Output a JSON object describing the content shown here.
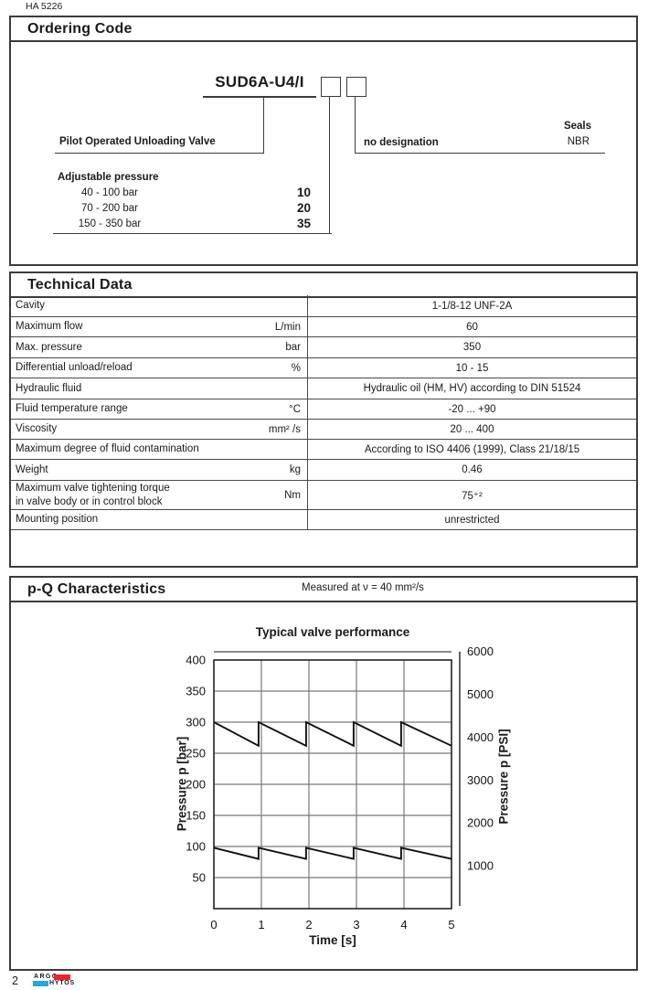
{
  "page": {
    "doc_number": "HA 5226",
    "page_number": "2",
    "brand_top": "ARGO",
    "brand_bottom": "HYTOS",
    "brand_red": "#e8262b",
    "brand_cyan": "#29a8e0"
  },
  "ordering": {
    "title": "Ordering Code",
    "code": "SUD6A-U4/I",
    "valve_label": "Pilot Operated Unloading Valve",
    "no_designation_label": "no designation",
    "seals_label": "Seals",
    "seals_value": "NBR",
    "adjustable_pressure": {
      "label": "Adjustable pressure",
      "options": [
        {
          "range": "40 - 100 bar",
          "code": "10"
        },
        {
          "range": "70 - 200 bar",
          "code": "20"
        },
        {
          "range": "150 - 350 bar",
          "code": "35"
        }
      ]
    }
  },
  "technical": {
    "title": "Technical Data",
    "rows": [
      {
        "label": "Cavity",
        "unit": "",
        "value": "1-1/8-12 UNF-2A"
      },
      {
        "label": "Maximum flow",
        "unit": "L/min",
        "value": "60"
      },
      {
        "label": "Max. pressure",
        "unit": "bar",
        "value": "350"
      },
      {
        "label": "Differential unload/reload",
        "unit": "%",
        "value": "10 - 15"
      },
      {
        "label": "Hydraulic fluid",
        "unit": "",
        "value": "Hydraulic oil (HM, HV) according to DIN 51524"
      },
      {
        "label": "Fluid temperature range",
        "unit": "°C",
        "value": "-20 ... +90"
      },
      {
        "label": "Viscosity",
        "unit": "mm² /s",
        "value": "20 ... 400"
      },
      {
        "label": "Maximum degree of fluid contamination",
        "unit": "",
        "value": "According to ISO 4406 (1999), Class 21/18/15"
      },
      {
        "label": "Weight",
        "unit": "kg",
        "value": "0.46"
      },
      {
        "label": "Maximum valve tightening torque",
        "label2": "in valve body or in control block",
        "unit": "Nm",
        "value": "75⁺²"
      },
      {
        "label": "Mounting position",
        "unit": "",
        "value": "unrestricted"
      }
    ]
  },
  "pq": {
    "title": "p-Q Characteristics",
    "subtitle": "Measured at  ν = 40 mm²/s"
  },
  "chart_data": {
    "type": "line",
    "title": "Typical valve performance",
    "xlabel": "Time [s]",
    "ylabel_left": "Pressure p [bar]",
    "ylabel_right": "Pressure p [PSI]",
    "xlim": [
      0,
      5
    ],
    "ylim_left": [
      0,
      400
    ],
    "x_ticks": [
      0,
      1,
      2,
      3,
      4,
      5
    ],
    "y_ticks_left": [
      400,
      350,
      300,
      250,
      200,
      150,
      100,
      50
    ],
    "y_ticks_right": [
      6000,
      5000,
      4000,
      3000,
      2000,
      1000
    ],
    "psi_per_bar": 14.5038,
    "grid": true,
    "legend": false,
    "series": [
      {
        "name": "setting-300-bar",
        "description": "Unload/reload sawtooth cycle at 300 bar setting (drops to ~262 bar, period 1 s)",
        "points": [
          [
            0,
            300
          ],
          [
            0.94,
            262
          ],
          [
            0.94,
            300
          ],
          [
            1.94,
            262
          ],
          [
            1.94,
            300
          ],
          [
            2.94,
            262
          ],
          [
            2.94,
            300
          ],
          [
            3.94,
            262
          ],
          [
            3.94,
            300
          ],
          [
            5,
            262
          ]
        ]
      },
      {
        "name": "setting-100-bar",
        "description": "Unload/reload sawtooth cycle at ~98 bar setting (drops to ~80 bar, period 1 s)",
        "points": [
          [
            0,
            98
          ],
          [
            0.94,
            80
          ],
          [
            0.94,
            98
          ],
          [
            1.94,
            80
          ],
          [
            1.94,
            98
          ],
          [
            2.94,
            80
          ],
          [
            2.94,
            98
          ],
          [
            3.94,
            80
          ],
          [
            3.94,
            98
          ],
          [
            5,
            80
          ]
        ]
      }
    ]
  }
}
